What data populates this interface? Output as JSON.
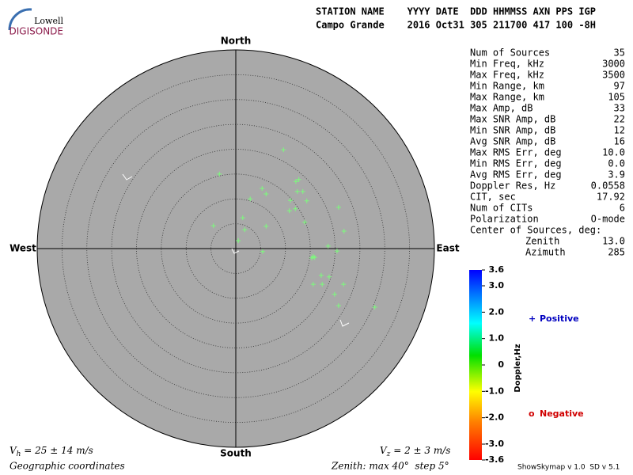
{
  "logo": {
    "top": "Lowell",
    "bottom": "DIGISONDE"
  },
  "header": {
    "labels": "STATION NAME    YYYY DATE  DDD HHMMSS AXN PPS IGP",
    "values": "Campo Grande    2016 Oct31 305 211700 417 100 -8H"
  },
  "stats": [
    {
      "label": "Num of Sources",
      "value": "35"
    },
    {
      "label": "Min Freq, kHz",
      "value": "3000"
    },
    {
      "label": "Max Freq, kHz",
      "value": "3500"
    },
    {
      "label": "Min Range, km",
      "value": "97"
    },
    {
      "label": "Max Range, km",
      "value": "105"
    },
    {
      "label": "Max Amp, dB",
      "value": "33"
    },
    {
      "label": "Max SNR Amp, dB",
      "value": "22"
    },
    {
      "label": "Min SNR Amp, dB",
      "value": "12"
    },
    {
      "label": "Avg SNR Amp, dB",
      "value": "16"
    },
    {
      "label": "Max RMS Err, deg",
      "value": "10.0"
    },
    {
      "label": "Min RMS Err, deg",
      "value": "0.0"
    },
    {
      "label": "Avg RMS Err, deg",
      "value": "3.9"
    },
    {
      "label": "Doppler Res, Hz",
      "value": "0.0558"
    },
    {
      "label": "CIT, sec",
      "value": "17.92"
    },
    {
      "label": "Num of CITs",
      "value": "6"
    },
    {
      "label": "Polarization",
      "value": "O-mode"
    }
  ],
  "center": {
    "title": "Center of Sources, deg:",
    "rows": [
      {
        "label": "Zenith",
        "value": "13.0"
      },
      {
        "label": "Azimuth",
        "value": "285"
      }
    ]
  },
  "chart_data": {
    "type": "scatter",
    "north": "North",
    "south": "South",
    "east": "East",
    "west": "West",
    "xlim": [
      -40,
      40
    ],
    "ylim": [
      -40,
      40
    ],
    "ring_step": 5,
    "color": "#7cfc7c",
    "x": [
      9.6,
      -3.3,
      12.7,
      12.1,
      13.5,
      12.4,
      2.9,
      6.1,
      5.3,
      11.0,
      14.3,
      12.0,
      10.8,
      20.7,
      13.9,
      1.4,
      -4.5,
      1.8,
      6.1,
      21.8,
      0.5,
      18.6,
      20.4,
      5.4,
      15.9,
      15.3,
      15.6,
      17.2,
      18.8,
      15.6,
      17.4,
      21.7,
      19.9,
      20.7,
      28.0
    ],
    "values": [
      19.9,
      15.0,
      13.9,
      13.5,
      11.5,
      11.5,
      10.0,
      11.0,
      12.1,
      9.7,
      9.6,
      8.0,
      7.6,
      8.3,
      5.3,
      6.2,
      4.6,
      3.8,
      4.5,
      3.5,
      1.6,
      0.5,
      -0.5,
      -0.6,
      -1.8,
      -1.9,
      -1.6,
      -5.4,
      -5.7,
      -7.2,
      -7.2,
      -7.2,
      -9.2,
      -11.5,
      -11.8
    ]
  },
  "colorbar": {
    "label": "Doppler,Hz",
    "clim": [
      -3.6,
      3.6
    ],
    "ticks": [
      3.6,
      {
        "value": 3,
        "label": "3.0"
      },
      {
        "value": 2,
        "label": "2.0"
      },
      {
        "value": 1,
        "label": "1.0"
      },
      0,
      {
        "value": -1,
        "label": "-1.0"
      },
      {
        "value": -2,
        "label": "-2.0"
      },
      {
        "value": -3,
        "label": "-3.0"
      },
      -3.6
    ]
  },
  "legend": {
    "positive_symbol": "+",
    "positive": "Positive",
    "negative_symbol": "o",
    "negative": "Negative"
  },
  "velocity": {
    "h_symbol": "V",
    "h_sub": "h",
    "h_text": " = 25 ± 14 m/s",
    "z_symbol": "V",
    "z_sub": "z",
    "z_text": " = 2 ± 3 m/s"
  },
  "footer": {
    "coords": "Geographic coordinates",
    "zenith": "Zenith: max 40°  step 5°",
    "version": "ShowSkymap v 1.0  SD v 5.1"
  }
}
